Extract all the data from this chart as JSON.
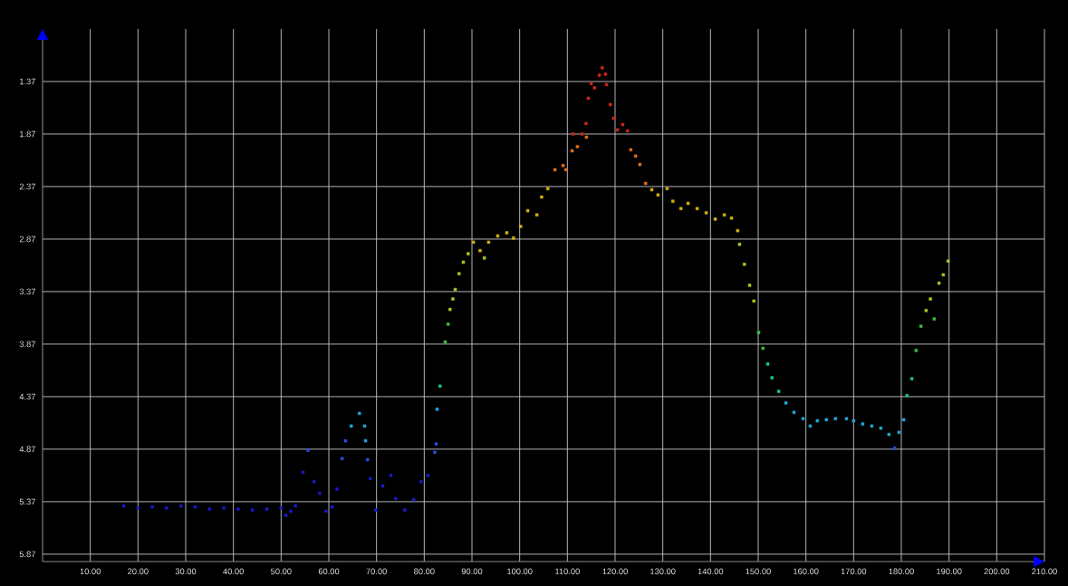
{
  "chart_data": {
    "type": "scatter",
    "marker": "square",
    "grid": true,
    "xlim": [
      0,
      210
    ],
    "ylim": [
      5.94,
      0.87
    ],
    "xticks": [
      {
        "value": 10,
        "label": "10.00"
      },
      {
        "value": 20,
        "label": "20.00"
      },
      {
        "value": 30,
        "label": "30.00"
      },
      {
        "value": 40,
        "label": "40.00"
      },
      {
        "value": 50,
        "label": "50.00"
      },
      {
        "value": 60,
        "label": "60.00"
      },
      {
        "value": 70,
        "label": "70.00"
      },
      {
        "value": 80,
        "label": "80.00"
      },
      {
        "value": 90,
        "label": "90.00"
      },
      {
        "value": 100,
        "label": "100.00"
      },
      {
        "value": 110,
        "label": "110.00"
      },
      {
        "value": 120,
        "label": "120.00"
      },
      {
        "value": 130,
        "label": "130.00"
      },
      {
        "value": 140,
        "label": "140.00"
      },
      {
        "value": 150,
        "label": "150.00"
      },
      {
        "value": 160,
        "label": "160.00"
      },
      {
        "value": 170,
        "label": "170.00"
      },
      {
        "value": 180,
        "label": "180.00"
      },
      {
        "value": 190,
        "label": "190.00"
      },
      {
        "value": 200,
        "label": "200.00"
      },
      {
        "value": 210,
        "label": "210.00"
      }
    ],
    "yticks": [
      1.37,
      1.87,
      2.37,
      2.87,
      3.37,
      3.87,
      4.37,
      4.87,
      5.37,
      5.87
    ],
    "series": [
      {
        "color": "#1a1acc",
        "x": [
          17,
          20,
          23,
          26,
          29,
          32,
          35,
          38,
          41,
          44,
          47,
          50,
          51,
          52,
          53,
          54.6,
          56.9,
          58.1,
          59.4,
          60.7,
          61.7,
          68.7,
          69.8,
          71.3,
          73.0,
          74.0,
          75.9,
          77.8,
          79.3,
          80.8
        ],
        "values": [
          5.41,
          5.43,
          5.42,
          5.43,
          5.41,
          5.42,
          5.44,
          5.43,
          5.44,
          5.45,
          5.44,
          5.43,
          5.5,
          5.46,
          5.41,
          5.09,
          5.18,
          5.29,
          5.46,
          5.42,
          5.25,
          5.15,
          5.45,
          5.22,
          5.12,
          5.34,
          5.45,
          5.35,
          5.18,
          5.12
        ]
      },
      {
        "color": "#2a4ee0",
        "x": [
          55.6,
          62.8,
          63.5,
          68.1,
          82.2,
          82.5,
          178.6
        ],
        "values": [
          4.88,
          4.96,
          4.79,
          4.97,
          4.9,
          4.82,
          4.86
        ]
      },
      {
        "color": "#23a8d8",
        "x": [
          64.7,
          66.4,
          67.5,
          67.7,
          82.7,
          155.8,
          157.5,
          159.4,
          160.9,
          162.4,
          164.3,
          166.2,
          168.5,
          170.0,
          171.9,
          173.8,
          175.7,
          177.4,
          179.5,
          180.5
        ],
        "values": [
          4.65,
          4.53,
          4.65,
          4.79,
          4.49,
          4.43,
          4.52,
          4.58,
          4.65,
          4.6,
          4.59,
          4.58,
          4.58,
          4.6,
          4.63,
          4.65,
          4.67,
          4.73,
          4.71,
          4.59
        ]
      },
      {
        "color": "#1fc0a0",
        "x": [
          83.3,
          152.0,
          152.9,
          154.3,
          181.2,
          182.2
        ],
        "values": [
          4.27,
          4.06,
          4.19,
          4.32,
          4.36,
          4.2
        ]
      },
      {
        "color": "#3cc040",
        "x": [
          84.4,
          85.0,
          150.1,
          151.0,
          183.1,
          184.1,
          186.9
        ],
        "values": [
          3.85,
          3.68,
          3.76,
          3.91,
          3.93,
          3.7,
          3.63
        ]
      },
      {
        "color": "#a8c820",
        "x": [
          85.4,
          86.0,
          86.5,
          87.3,
          88.2,
          89.2,
          92.6,
          146.1,
          147.1,
          148.2,
          149.1,
          185.2,
          186.1,
          187.9,
          188.8,
          189.8
        ],
        "values": [
          3.54,
          3.44,
          3.35,
          3.2,
          3.09,
          3.01,
          3.05,
          2.92,
          3.11,
          3.31,
          3.46,
          3.55,
          3.44,
          3.29,
          3.21,
          3.08
        ]
      },
      {
        "color": "#d4b010",
        "x": [
          90.3,
          91.7,
          93.5,
          95.4,
          97.3,
          98.7,
          100.2,
          101.7,
          103.6,
          104.6,
          105.9,
          127.7,
          129.0,
          130.9,
          132.1,
          133.8,
          135.3,
          137.2,
          139.1,
          141.0,
          142.9,
          144.4,
          145.7
        ],
        "values": [
          2.9,
          2.98,
          2.9,
          2.84,
          2.81,
          2.86,
          2.75,
          2.6,
          2.64,
          2.47,
          2.39,
          2.4,
          2.45,
          2.39,
          2.51,
          2.58,
          2.53,
          2.58,
          2.62,
          2.68,
          2.64,
          2.67,
          2.79
        ]
      },
      {
        "color": "#e07018",
        "x": [
          107.4,
          109.1,
          109.7,
          111.0,
          112.1,
          114.0,
          123.3,
          124.3,
          125.2,
          126.4
        ],
        "values": [
          2.21,
          2.17,
          2.21,
          2.03,
          1.99,
          1.9,
          2.02,
          2.08,
          2.16,
          2.34
        ]
      },
      {
        "color": "#d02818",
        "x": [
          111.2,
          113.1,
          113.9,
          114.4,
          115.0,
          115.7,
          116.7,
          117.3,
          118.0,
          118.2,
          119.0,
          119.7,
          120.5,
          121.6,
          122.6
        ],
        "values": [
          1.87,
          1.87,
          1.77,
          1.53,
          1.39,
          1.43,
          1.31,
          1.24,
          1.3,
          1.4,
          1.59,
          1.72,
          1.83,
          1.78,
          1.84
        ]
      }
    ]
  }
}
